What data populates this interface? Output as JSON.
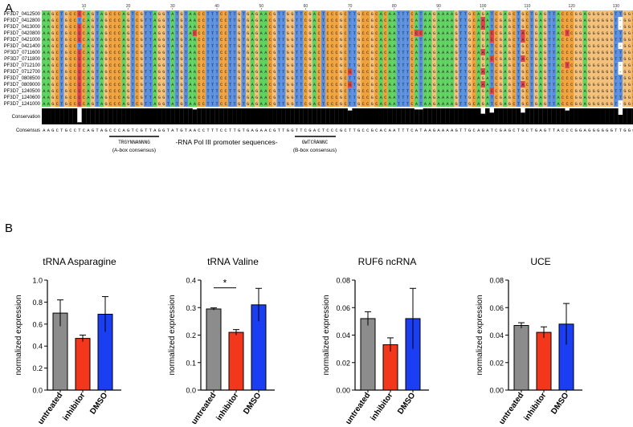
{
  "panels": {
    "a": "A",
    "b": "B"
  },
  "alignment": {
    "ruler": [
      "10",
      "20",
      "30",
      "40",
      "50",
      "60",
      "70",
      "80",
      "90",
      "100",
      "110",
      "120",
      "130"
    ],
    "sequences": [
      {
        "id": "PF3D7_0412500",
        "seq": "AAGCTGCCCCAGTAGCCCAGTCGTTAGGTATGTAACCTTTCCTTGTGAGAACGTTGGTTCGACTCCCGCTTGCCGCACAATTTCATAAGAAAAGTTGCAGATCGAGCTGCTGAGTTACCCGGAGGGGGGTTGGCGCAA"
      },
      {
        "id": "PF3D7_0412800",
        "seq": "AAGCTGCCTCAGTAGCCCAGTCGTTAGGTATGTAACCTTTCCTTGTGAGAACGTTGGTTCGACTCCCGCTTGCCGCACAATTTCATAAGAAAAGTTGCAAATCGAGCTGCTGAGTTACCCGGAGGGGGGT-GGCGCAA"
      },
      {
        "id": "PF3D7_0413000",
        "seq": "AAGCTGCCCCAGTAGCCCAGTCGTTAGGTATGTAACCTTTCCTTGTGAGAACGTTGGTTCGACTCCCGCTTGCCGCACAATTTCATAAGAAAAGTTGCAAATCGAGCTGCTGAGTTACCCGGAGGGGGGT-GGCGCAA"
      },
      {
        "id": "PF3D7_0420800",
        "seq": "AAGCTGCCCCAGTAGCCCAGTCGTTAGGTATGTACCCTTTCCTTGTGAGAACGTTGGTTCGACTCCCGCTTGCCGCACAATTTCCCAAGAAAAGTTGCAGACCGAGCTACTGAGTTACTCGGAGGGGGGTTGGCGCAA"
      },
      {
        "id": "PF3D7_0421000",
        "seq": "AAGCTGCCCCAGTAGCCCAGTCGTTAGGTATGTAACCTTTCCTTGTGAGAACGTTGGTTCGACTCCCGCTTGCCGCACAATTTCATAAGAAAAGTTGCAGACCGAGCTACTGAGTTACCCGGAGGGGGGTTGGCGCAA"
      },
      {
        "id": "PF3D7_0421400",
        "seq": "AAGCTGCCTCAGTAGCCCAGTCGTTAGGTATGTAACCTTTCCTTGTGAGAACGTTGGTTCGACTCCCGCTTGCCGCACAATTTCATAAGAAAAGTTGCAGATCGAGCTGCTGAGTTACCCGGAGGGGGGT-GGCGCAA"
      },
      {
        "id": "PF3D7_0711600",
        "seq": "AAGCTGCCCCAGTAGCCCAGTCGTTAGGTATGTAACCTTTCCTTGTGAGAACGTTGGTTCGACTCCCGCTTGCCGCACAATTTCATAAGAAAAGTTGCAAATCGAGCTGCTGAGTTACCCGGAGGGGGGTTGGCGCAA"
      },
      {
        "id": "PF3D7_0711800",
        "seq": "AAGCTGCCCCAGTAGCCCAGTCGTTAGGTATGTAACCTTTCCTTGTGAGAACGTTGGTTCGACTCCCGCTTGCCGCACAATTTCATAAGAAAAGTTGCAGACCGAGCTACTGAGTTACCCGGAGGGGGGTTGGCGCAA"
      },
      {
        "id": "PF3D7_0712100",
        "seq": "AAGCTGCCCCAGTAGCCCAGTCGTTAGGTATGTAACCTTTCCTTGTGAGAACGTTGGTTCGACTCCCGCTTGCCGCACAATTTCATAAGAAAAGTTGCAGATCGAGCTGCTGAGTTACTCGGAGGGGGGT-GGCGCAA"
      },
      {
        "id": "PF3D7_0712700",
        "seq": "AAGCTGCCCCAGTAGCCCAGTCGTTAGGTATGTAACCTTTCCTTGTGAGAACGTTGGTTCGACTCCCGCGTGCCGCACAATTTCATAAGAAAAGTTGCAAATCGAGCTGCTGAGTTACCCGGAGGGGGGT-GGCGCAA"
      },
      {
        "id": "PF3D7_0808500",
        "seq": "AAGCTGCCCCAGTAGCCCAGTCGTTAGGTATGTAACCTTTCCTTGTGAGAACGTTGGTTCGACTCCCGCTTGCCGCACAATTTCATAAGAAAAGTTGCAGATCGAGCTGCTGAGTTACCCGGAGGGGGGTTGGCGCAA"
      },
      {
        "id": "PF3D7_0809000",
        "seq": "AAGCTGCCCCAGTAGCCCAGTCGTTAGGTATGTAACCTTTCCTTGTGAGAACGTTGGTTCGACTCCCGCGTGCCGCACAATTTCATAAGAAAAGTTGCAAATCGAGCTACTGAGTTACCCGGAGGGGGGTTGGCGCAA"
      },
      {
        "id": "PF3D7_1240500",
        "seq": "AAGCTGCCCCAGTAGCCCAGTCGTTAGGTATGTAACCTTTCCTTGTGAGAACGTTGGTTCGACTCCCGCTTGCCGCACAATTTCATAAGAAAAGTTGCAGACCGAGCTGCTGAGTTACCCGGAGGGGGGTTGGCGCAA"
      },
      {
        "id": "PF3D7_1240600",
        "seq": "AAGCTGCCCCAGTAGCCCAGTCGTTAGGTATGTAACCTTTCCTTGTGAGAACGTTGGTTCGACTCCCGCTTGCCGCACAATTTCATAAGAAAAGTTGCAGATCGAGCTGCTGAGTTACCCGGAGGGGGGTTGGCGCAA"
      },
      {
        "id": "PF3D7_1241000",
        "seq": "AAGCTGCCCCAGTAGCCCAGTCGTTAGGTATGTAACCTTTCCTTGTGAGAACGTTGGTTCGACTCCCGCTTGCCGCACAATTTCATAAGAAAAGTTGCAGATCGAGCTGCTGAGTTACCCGGAGGGGGGT-GGCGCAA"
      }
    ],
    "nucleotide_colors": {
      "A": "#5fd35f",
      "C": "#f0a23c",
      "G": "#f4c07a",
      "T": "#5b8fe0",
      "-": "#ffffff",
      "mismatch": "#e0454b"
    },
    "conservation_label": "Conservation",
    "consensus_label": "Consensus",
    "consensus": "AAGCTGCCTCAGTAGCCCAGTCGTTAGGTATGTAACCTTTCCTTGTGAGAACGTTGGTTCGACTCCCGCTTGCCGCACAATTTCATAAGAAAAGTTGCAGATCGAGCTGCTGAGTTACCCGGAGGGGGGTTGGCGCAA",
    "a_box_motif": "TRGYNNANNNG",
    "a_box_label": "(A-box consensus)",
    "promoter_label": "-RNA Pol III promoter sequences-",
    "b_box_motif": "GWTCRANNC",
    "b_box_label": "(B-box consensus)"
  },
  "chart_data": [
    {
      "type": "bar",
      "title": "tRNA Asparagine",
      "categories": [
        "untreated",
        "inhibitor",
        "DMSO"
      ],
      "values": [
        0.7,
        0.47,
        0.69
      ],
      "errors": [
        0.12,
        0.03,
        0.16
      ],
      "ylabel": "normalized expression",
      "ylim": [
        0,
        1.0
      ],
      "yticks": [
        "0.0",
        "0.2",
        "0.4",
        "0.6",
        "0.8",
        "1.0"
      ],
      "colors": [
        "#8c8c8c",
        "#f2371c",
        "#1c3ef2"
      ],
      "significance": null
    },
    {
      "type": "bar",
      "title": "tRNA Valine",
      "categories": [
        "untreated",
        "inhibitor",
        "DMSO"
      ],
      "values": [
        0.295,
        0.21,
        0.31
      ],
      "errors": [
        0.004,
        0.01,
        0.06
      ],
      "ylabel": "normalized expression",
      "ylim": [
        0,
        0.4
      ],
      "yticks": [
        "0.0",
        "0.1",
        "0.2",
        "0.3",
        "0.4"
      ],
      "colors": [
        "#8c8c8c",
        "#f2371c",
        "#1c3ef2"
      ],
      "significance": "*"
    },
    {
      "type": "bar",
      "title": "RUF6 ncRNA",
      "categories": [
        "untreated",
        "inhibitor",
        "DMSO"
      ],
      "values": [
        0.052,
        0.033,
        0.052
      ],
      "errors": [
        0.005,
        0.005,
        0.022
      ],
      "ylabel": "normalized expression",
      "ylim": [
        0,
        0.08
      ],
      "yticks": [
        "0.00",
        "0.02",
        "0.04",
        "0.06",
        "0.08"
      ],
      "colors": [
        "#8c8c8c",
        "#f2371c",
        "#1c3ef2"
      ],
      "significance": null
    },
    {
      "type": "bar",
      "title": "UCE",
      "categories": [
        "untreated",
        "inhibitor",
        "DMSO"
      ],
      "values": [
        0.047,
        0.042,
        0.048
      ],
      "errors": [
        0.002,
        0.004,
        0.015
      ],
      "ylabel": "normalized expression",
      "ylim": [
        0,
        0.08
      ],
      "yticks": [
        "0.00",
        "0.02",
        "0.04",
        "0.06",
        "0.08"
      ],
      "colors": [
        "#8c8c8c",
        "#f2371c",
        "#1c3ef2"
      ],
      "significance": null
    }
  ]
}
